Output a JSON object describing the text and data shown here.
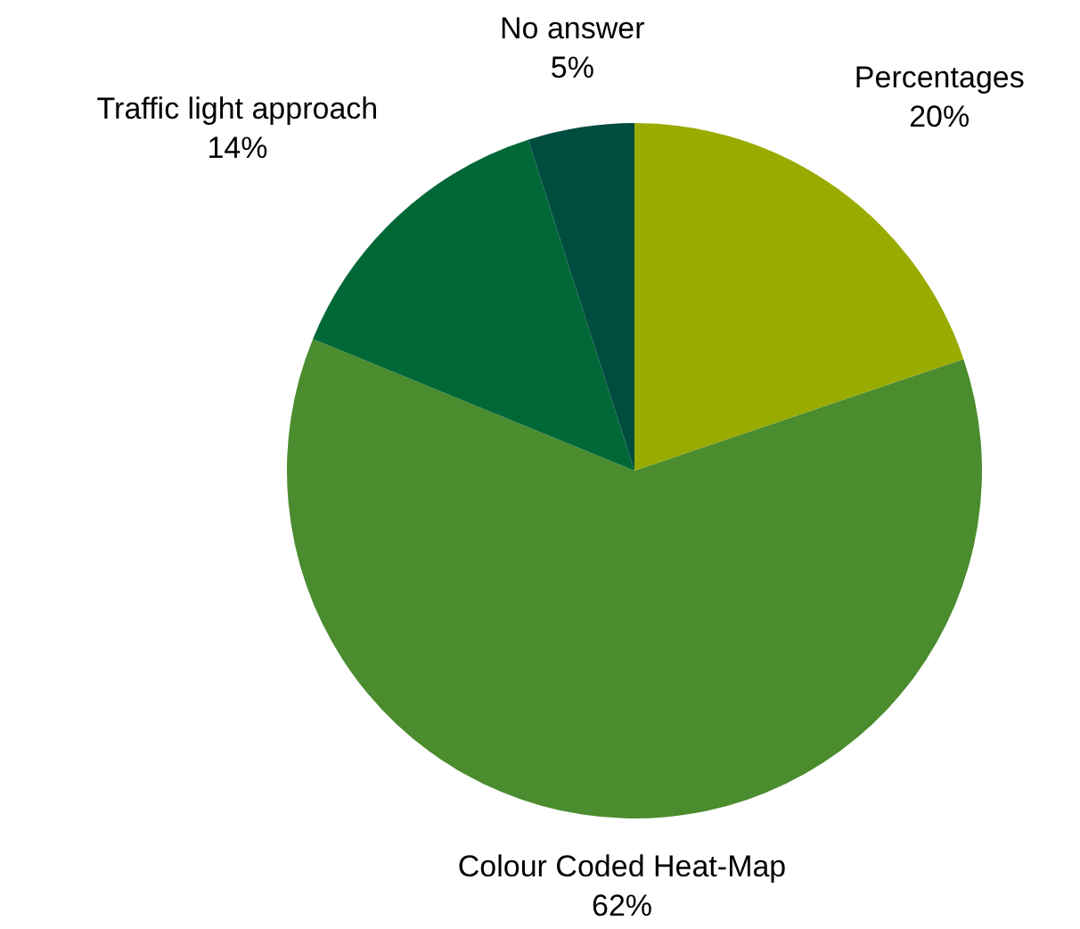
{
  "chart_data": {
    "type": "pie",
    "categories": [
      "Percentages",
      "Colour Coded Heat-Map",
      "Traffic light approach",
      "No answer"
    ],
    "values": [
      20,
      62,
      14,
      5
    ],
    "value_labels": [
      "20%",
      "62%",
      "14%",
      "5%"
    ],
    "colors": [
      "#9aab00",
      "#4a8c2e",
      "#006837",
      "#004d40"
    ],
    "legend": false
  }
}
